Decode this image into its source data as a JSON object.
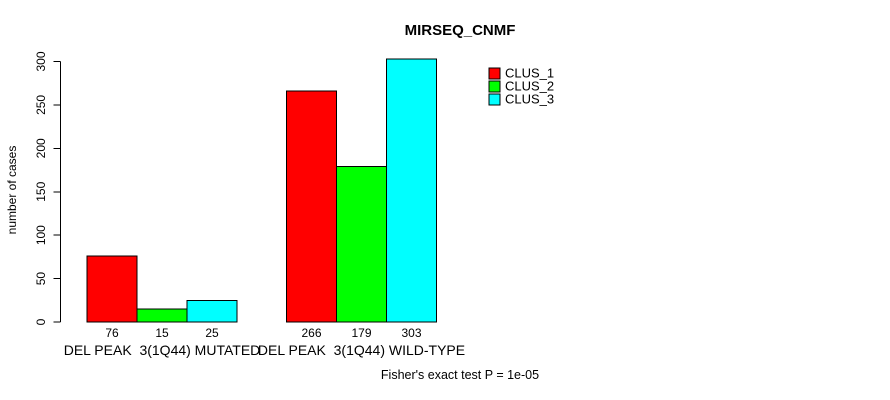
{
  "chart_data": {
    "type": "bar",
    "title": "MIRSEQ_CNMF",
    "ylabel": "number of cases",
    "xlabel": "",
    "footnote": "Fisher's exact test P = 1e-05",
    "categories": [
      "DEL PEAK  3(1Q44) MUTATED",
      "DEL PEAK  3(1Q44) WILD-TYPE"
    ],
    "series": [
      {
        "name": "CLUS_1",
        "color": "#FF0000",
        "values": [
          76,
          266
        ]
      },
      {
        "name": "CLUS_2",
        "color": "#00FF00",
        "values": [
          15,
          179
        ]
      },
      {
        "name": "CLUS_3",
        "color": "#00FFFF",
        "values": [
          25,
          303
        ]
      }
    ],
    "yticks": [
      0,
      50,
      100,
      150,
      200,
      250,
      300
    ],
    "ylim": [
      0,
      300
    ],
    "grid": false,
    "legend_position": "top-right",
    "bar_border_color": "#000000",
    "axis_color": "#000000",
    "background_color": "#FFFFFF"
  }
}
